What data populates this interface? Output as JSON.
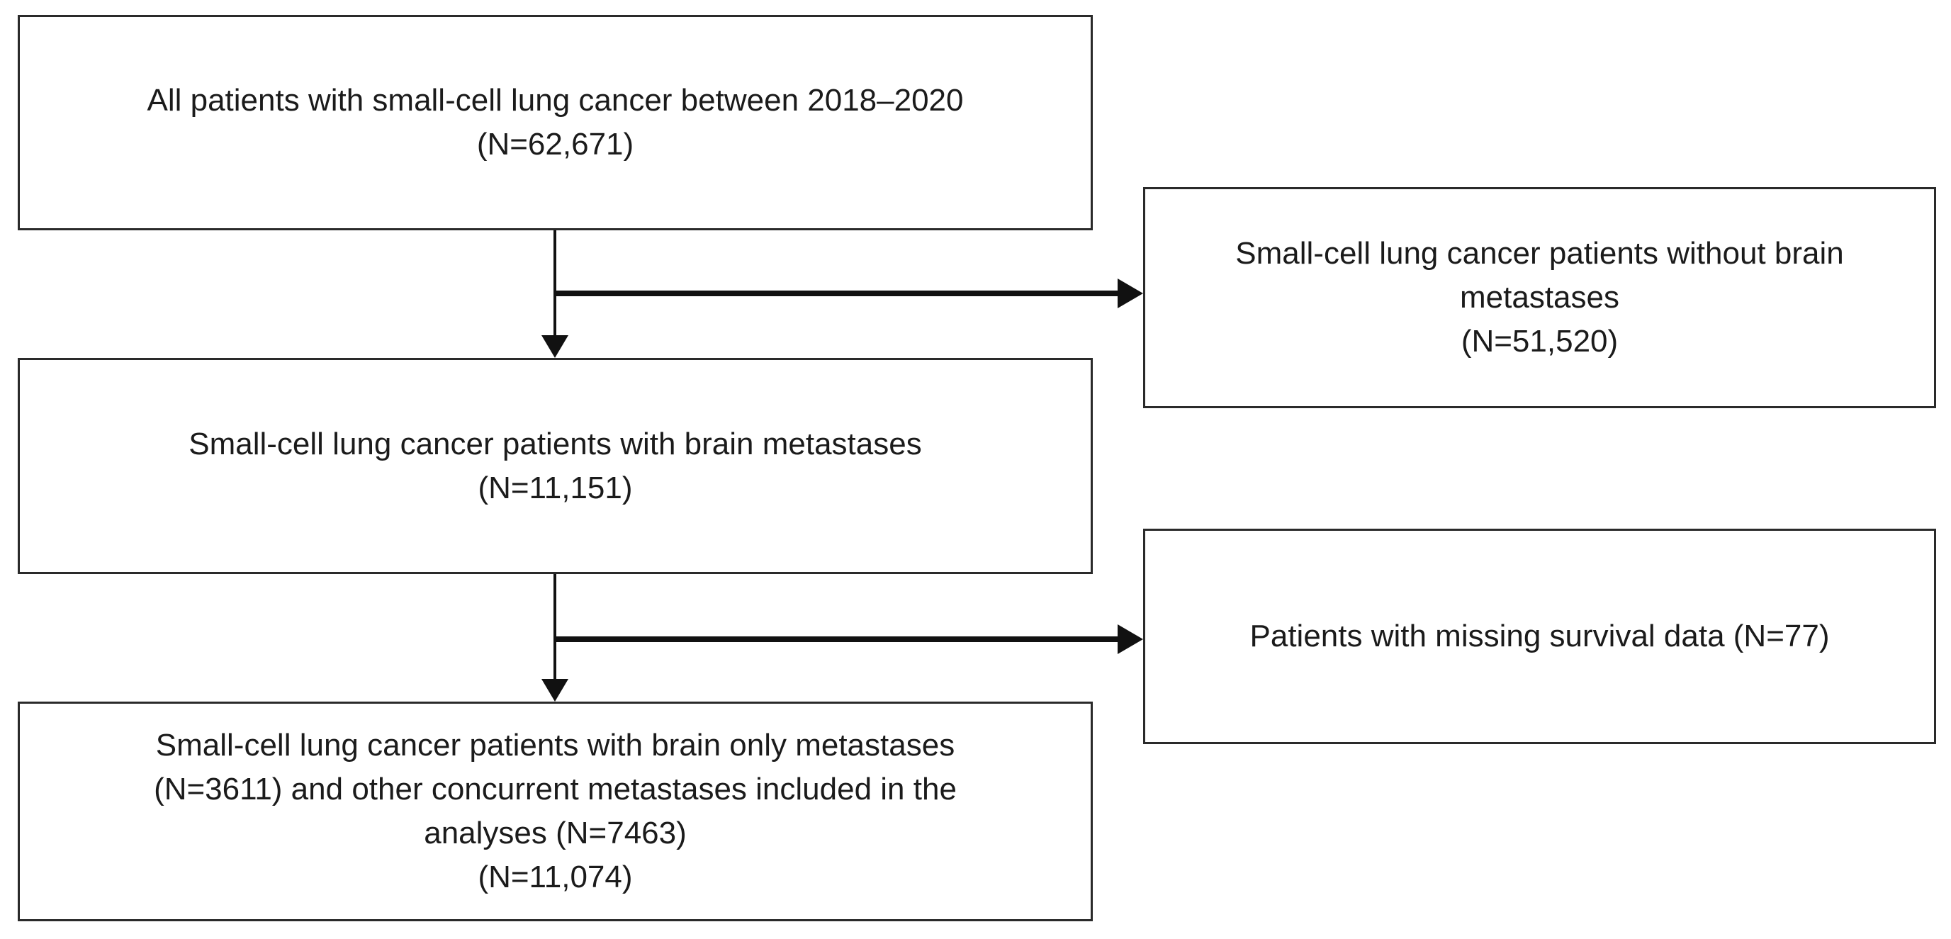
{
  "diagram": {
    "type": "patient-flow-chart",
    "boxes": [
      {
        "id": "all-patients",
        "lines": [
          "All patients with small-cell lung cancer between 2018–2020",
          "(N=62,671)"
        ],
        "n": 62671
      },
      {
        "id": "without-brain-metastases",
        "lines": [
          "Small-cell lung cancer patients without brain",
          "metastases",
          "(N=51,520)"
        ],
        "n": 51520
      },
      {
        "id": "with-brain-metastases",
        "lines": [
          "Small-cell lung cancer patients with brain metastases",
          "(N=11,151)"
        ],
        "n": 11151
      },
      {
        "id": "missing-survival-data",
        "lines": [
          "Patients with missing survival data (N=77)"
        ],
        "n": 77
      },
      {
        "id": "included-in-analyses",
        "lines": [
          "Small-cell lung cancer patients with brain only metastases",
          "(N=3611) and other concurrent metastases included in the",
          "analyses (N=7463)",
          "(N=11,074)"
        ],
        "n": 11074,
        "n_brain_only": 3611,
        "n_other_concurrent": 7463
      }
    ],
    "edges": [
      {
        "from": "all-patients",
        "to": "with-brain-metastases",
        "direction": "down"
      },
      {
        "from": "all-patients",
        "to": "without-brain-metastases",
        "direction": "right"
      },
      {
        "from": "with-brain-metastases",
        "to": "included-in-analyses",
        "direction": "down"
      },
      {
        "from": "with-brain-metastases",
        "to": "missing-survival-data",
        "direction": "right"
      }
    ],
    "colors": {
      "background": "#ffffff",
      "box_border": "#2a2a2a",
      "text": "#1b1b1b",
      "arrow": "#111111"
    }
  }
}
